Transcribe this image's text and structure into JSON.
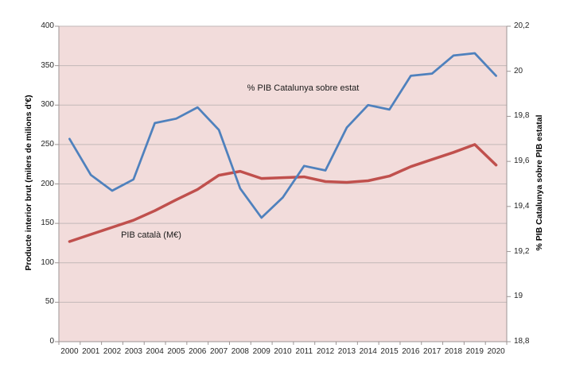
{
  "chart_data": {
    "type": "line",
    "title": "",
    "x_axis": {
      "tick_labels": [
        "2000",
        "2001",
        "2002",
        "2003",
        "2004",
        "2005",
        "2006",
        "2007",
        "2008",
        "2009",
        "2010",
        "2011",
        "2012",
        "2013",
        "2014",
        "2015",
        "2016",
        "2017",
        "2018",
        "2019",
        "2020"
      ]
    },
    "left_axis": {
      "label": "Producte interior brut (milers de milions d'€)",
      "min": 0,
      "max": 400,
      "step": 50,
      "tick_labels": [
        "400",
        "350",
        "300",
        "250",
        "200",
        "150",
        "100",
        "50",
        "0"
      ]
    },
    "right_axis": {
      "label": "% PIB Catalunya sobre PIB estatal",
      "min": 18.8,
      "max": 20.2,
      "step": 0.2,
      "tick_labels": [
        "20,2",
        "20",
        "19,8",
        "19,6",
        "19,4",
        "19,2",
        "19",
        "18,8"
      ]
    },
    "series": [
      {
        "name": "PIB català (M€)",
        "axis": "left",
        "color": "#c0504d",
        "values": [
          127,
          136,
          145,
          154,
          166,
          180,
          193,
          211,
          216,
          207,
          208,
          209,
          203,
          202,
          204,
          210,
          222,
          231,
          240,
          250,
          224
        ]
      },
      {
        "name": "% PIB Catalunya sobre estat",
        "axis": "right",
        "color": "#4f81bd",
        "values": [
          19.7,
          19.54,
          19.47,
          19.52,
          19.77,
          19.79,
          19.84,
          19.74,
          19.48,
          19.35,
          19.44,
          19.58,
          19.56,
          19.75,
          19.85,
          19.83,
          19.98,
          19.99,
          20.07,
          20.08,
          19.98
        ]
      }
    ],
    "annotations": [
      {
        "text": "% PIB Catalunya sobre estat"
      },
      {
        "text": "PIB català (M€)"
      }
    ],
    "grid": true,
    "legend_position": "none",
    "colors": {
      "plot_bg": "#f2dcdb",
      "gridline": "#c2b8b8",
      "axis_line": "#9c9494"
    }
  }
}
